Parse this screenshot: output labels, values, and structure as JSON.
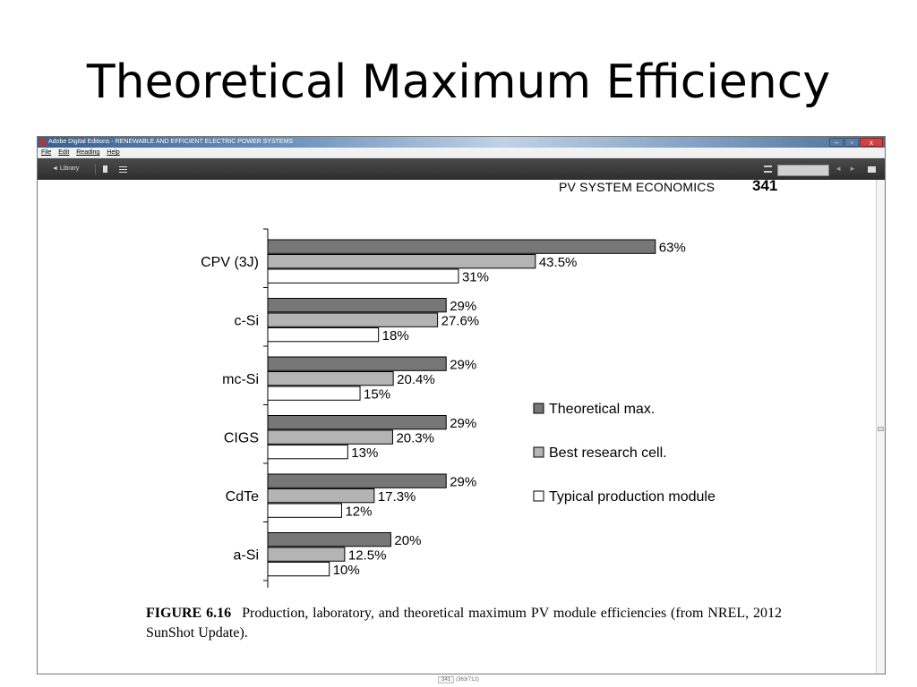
{
  "slide": {
    "title": "Theoretical Maximum Efficiency"
  },
  "app": {
    "window_title": "Adobe Digital Editions - RENEWABLE AND EFFICIENT ELECTRIC POWER SYSTEMS",
    "menu": [
      "File",
      "Edit",
      "Reading",
      "Help"
    ],
    "library_label": "◄ Library",
    "window_buttons": {
      "minimize": "–",
      "maximize": "▫",
      "close": "x"
    }
  },
  "book_page": {
    "header": "PV SYSTEM ECONOMICS",
    "page_number": "341",
    "caption_label": "FIGURE 6.16",
    "caption_text": "Production, laboratory, and theoretical maximum PV module efficiencies (from NREL, 2012 SunShot Update)."
  },
  "status": {
    "page": "341",
    "range": "(363/712)"
  },
  "colors": {
    "theoretical": "#777777",
    "research": "#b4b4b4",
    "production": "#ffffff",
    "outline": "#000000"
  },
  "chart_data": {
    "type": "bar",
    "orientation": "horizontal",
    "categories": [
      "CPV (3J)",
      "c-Si",
      "mc-Si",
      "CIGS",
      "CdTe",
      "a-Si"
    ],
    "series": [
      {
        "name": "Theoretical max.",
        "values": [
          63,
          29,
          29,
          29,
          29,
          20
        ],
        "labels": [
          "63%",
          "29%",
          "29%",
          "29%",
          "29%",
          "20%"
        ]
      },
      {
        "name": "Best research cell.",
        "values": [
          43.5,
          27.6,
          20.4,
          20.3,
          17.3,
          12.5
        ],
        "labels": [
          "43.5%",
          "27.6%",
          "20.4%",
          "20.3%",
          "17.3%",
          "12.5%"
        ]
      },
      {
        "name": "Typical production module",
        "values": [
          31,
          18,
          15,
          13,
          12,
          10
        ],
        "labels": [
          "31%",
          "18%",
          "15%",
          "13%",
          "12%",
          "10%"
        ]
      }
    ],
    "legend_position": "right",
    "grid": false
  }
}
